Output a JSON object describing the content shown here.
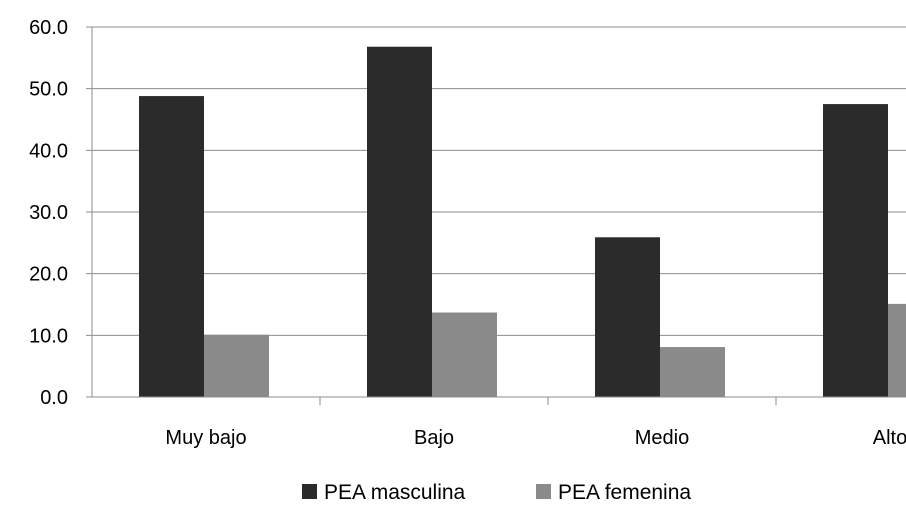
{
  "chart_data": {
    "type": "bar",
    "categories": [
      "Muy bajo",
      "Bajo",
      "Medio",
      "Alto"
    ],
    "series": [
      {
        "name": "PEA masculina",
        "values": [
          48.8,
          56.8,
          25.9,
          47.5
        ],
        "color": "#2b2b2b"
      },
      {
        "name": "PEA femenina",
        "values": [
          10.1,
          13.7,
          8.1,
          15.1
        ],
        "color": "#8a8a8a"
      }
    ],
    "y_ticks": [
      "0.0",
      "10.0",
      "20.0",
      "30.0",
      "40.0",
      "50.0",
      "60.0"
    ],
    "ylim": [
      0,
      60
    ],
    "grid": true,
    "legend_position": "bottom-center",
    "title": "",
    "xlabel": "",
    "ylabel": ""
  }
}
